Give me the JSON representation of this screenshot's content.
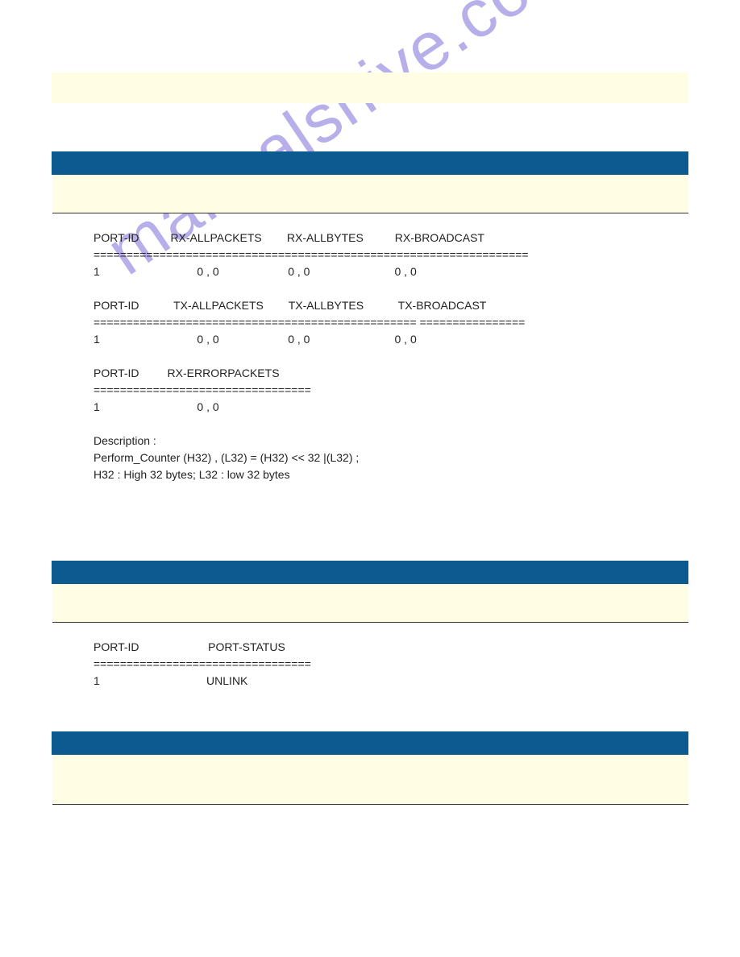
{
  "watermark": "manualshive.com",
  "tables": {
    "t1": {
      "headers": [
        "",
        "",
        ""
      ],
      "cols": [
        "col-a",
        "col-b",
        "col-c"
      ],
      "rows": [
        [
          "",
          "",
          ""
        ]
      ]
    },
    "t2": {
      "headers": [
        "",
        "",
        ""
      ],
      "cols": [
        "col-a",
        "col-b",
        "col-c"
      ],
      "rows": [
        [
          "",
          "",
          ""
        ]
      ]
    },
    "t3": {
      "headers": [
        "",
        "",
        ""
      ],
      "cols": [
        "col-a",
        "col-b",
        "col-c"
      ],
      "rows": [
        [
          "",
          "",
          ""
        ]
      ]
    }
  },
  "block1": {
    "rx_hdr_portid": "PORT-ID",
    "rx_hdr_allpackets": "RX-ALLPACKETS",
    "rx_hdr_allbytes": "RX-ALLBYTES",
    "rx_hdr_broadcast": "RX-BROADCAST",
    "rx_sep": "==================================================================",
    "rx_portid": "1",
    "rx_allpackets": "0 , 0",
    "rx_allbytes": "0 , 0",
    "rx_broadcast": "0 , 0",
    "tx_hdr_portid": "PORT-ID",
    "tx_hdr_allpackets": "TX-ALLPACKETS",
    "tx_hdr_allbytes": "TX-ALLBYTES",
    "tx_hdr_broadcast": "TX-BROADCAST",
    "tx_sep": "================================================= ================",
    "tx_portid": "1",
    "tx_allpackets": "0 , 0",
    "tx_allbytes": "0 , 0",
    "tx_broadcast": "0 , 0",
    "err_hdr_portid": "PORT-ID",
    "err_hdr_label": "RX-ERRORPACKETS",
    "err_sep": "=================================",
    "err_portid": "1",
    "err_val": "0 , 0",
    "desc1": "Description :",
    "desc2": "Perform_Counter (H32) , (L32) = (H32) << 32 |(L32) ;",
    "desc3": "H32 : High 32 bytes; L32 : low 32 bytes"
  },
  "block2": {
    "hdr_portid": "PORT-ID",
    "hdr_status": "PORT-STATUS",
    "sep": "=================================",
    "portid": "1",
    "status": "UNLINK"
  }
}
